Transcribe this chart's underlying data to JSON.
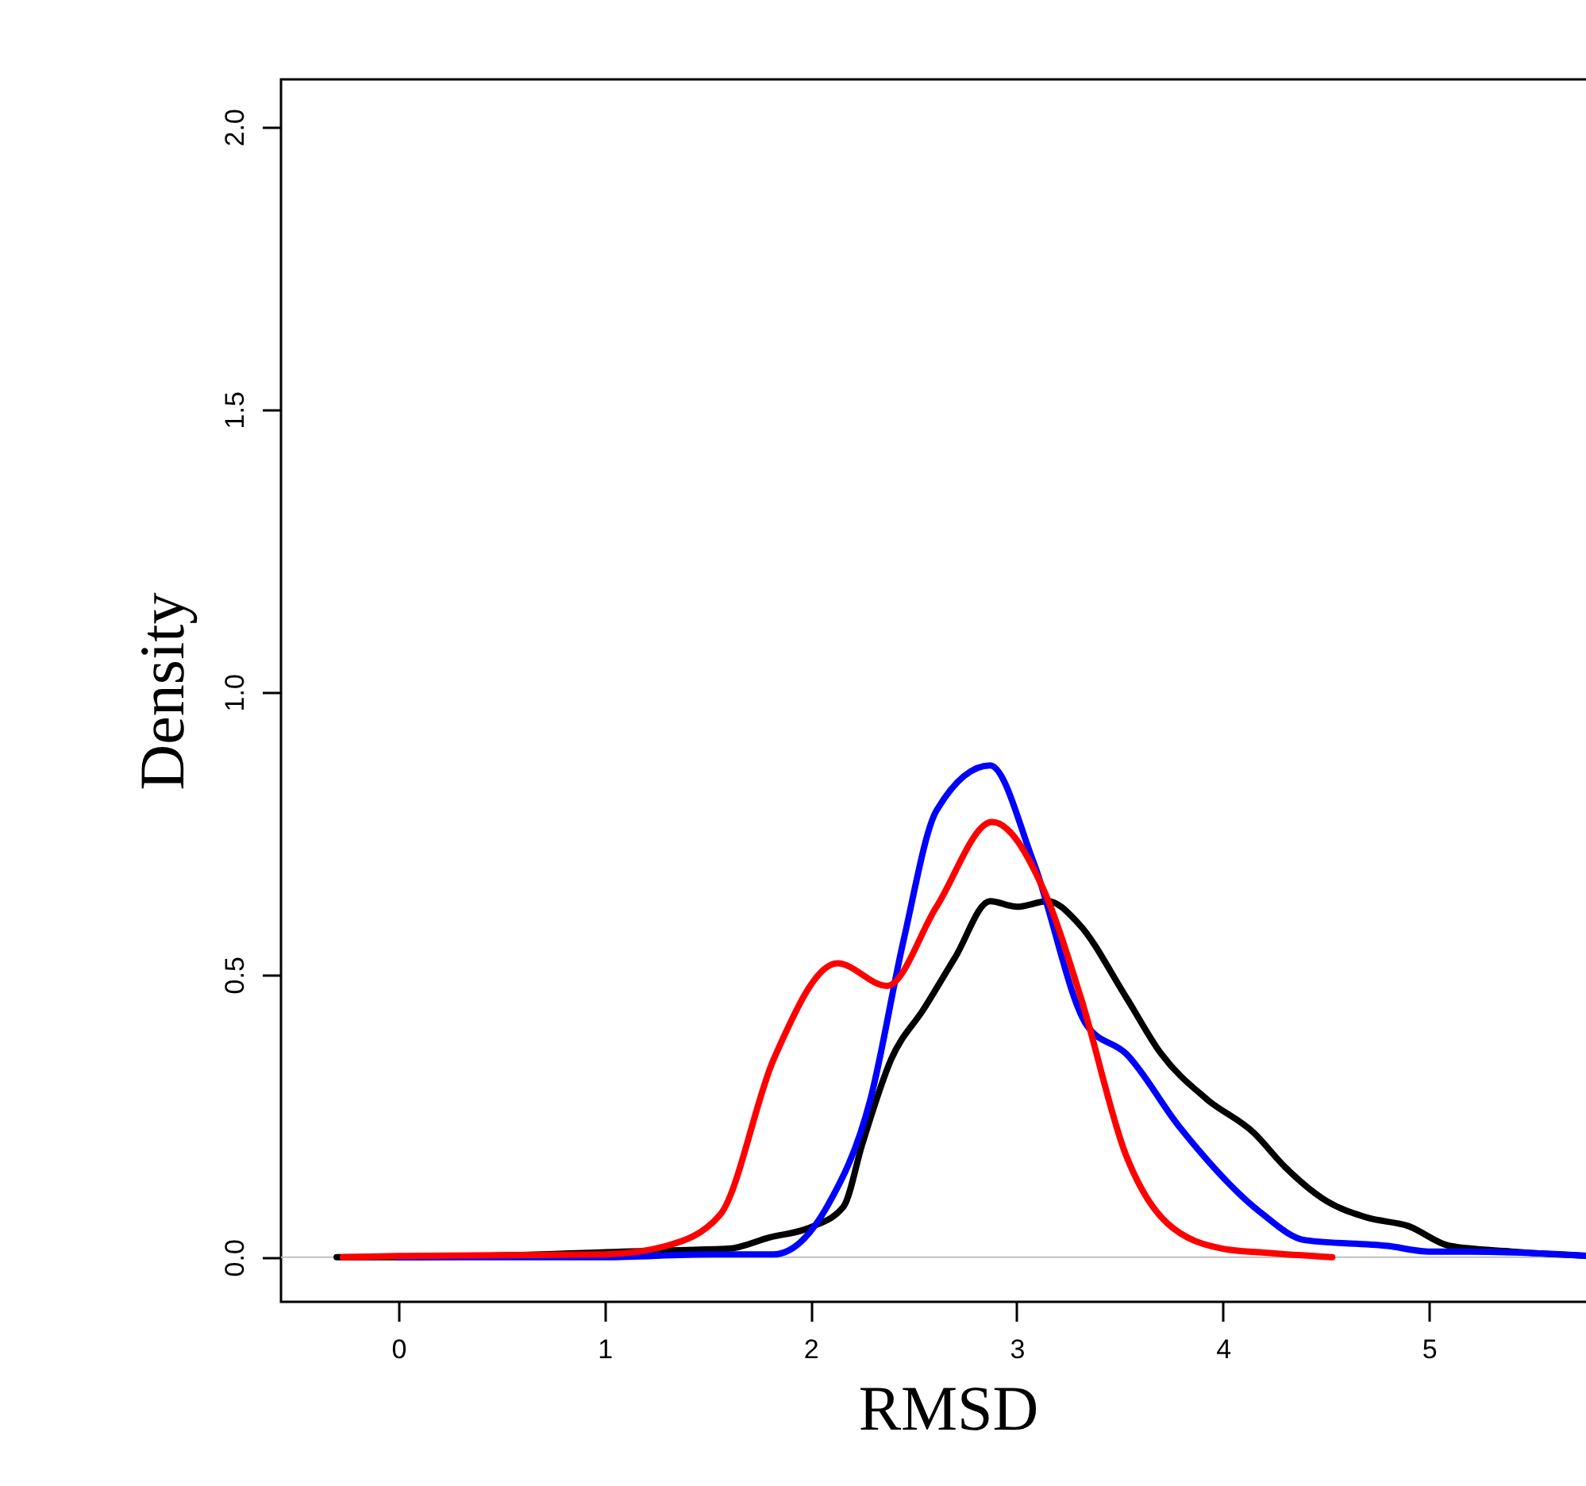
{
  "chart_data": {
    "type": "line",
    "xlabel": "RMSD",
    "ylabel": "Density",
    "xlim": [
      -0.57,
      5.9
    ],
    "ylim": [
      -0.079,
      2.084
    ],
    "xticks": [
      0,
      1,
      2,
      3,
      4,
      5
    ],
    "yticks": [
      {
        "value": 0,
        "label": "0.0"
      },
      {
        "value": 0.5,
        "label": "0.5"
      },
      {
        "value": 1,
        "label": "1.0"
      },
      {
        "value": 1.5,
        "label": "1.5"
      },
      {
        "value": 2,
        "label": "2.0"
      }
    ],
    "grid": false,
    "legend": false,
    "line_style": "solid",
    "marker": "none",
    "ref_lines": [
      {
        "axis": "y",
        "value": 0,
        "color": "#bebebe"
      }
    ],
    "series": [
      {
        "color": "#000000",
        "x": [
          -0.3,
          0,
          1.3,
          1.6,
          1.8,
          2.0,
          2.16,
          2.25,
          2.39,
          2.55,
          2.7,
          2.87,
          3.0,
          3.15,
          3.3,
          3.53,
          3.7,
          3.92,
          4.15,
          4.3,
          4.5,
          4.7,
          4.9,
          5.1,
          5.4,
          5.9
        ],
        "values": [
          0,
          0,
          0.012,
          0.015,
          0.035,
          0.053,
          0.09,
          0.2,
          0.35,
          0.44,
          0.53,
          0.63,
          0.62,
          0.63,
          0.59,
          0.46,
          0.36,
          0.28,
          0.22,
          0.16,
          0.1,
          0.07,
          0.055,
          0.02,
          0.01,
          0
        ]
      },
      {
        "color": "#0000ff",
        "x": [
          0,
          1,
          1.5,
          1.82,
          2.08,
          2.29,
          2.45,
          2.61,
          2.87,
          3.08,
          3.34,
          3.53,
          3.79,
          4.18,
          4.4,
          4.8,
          5.0,
          5.2,
          5.9
        ],
        "values": [
          0,
          0,
          0.005,
          0.005,
          0.09,
          0.28,
          0.56,
          0.79,
          0.87,
          0.7,
          0.41,
          0.36,
          0.23,
          0.08,
          0.03,
          0.02,
          0.01,
          0.01,
          0
        ]
      },
      {
        "color": "#ff0000",
        "x": [
          -0.27,
          0,
          1,
          1.3,
          1.56,
          1.82,
          2.13,
          2.37,
          2.61,
          2.88,
          3.13,
          3.31,
          3.53,
          3.73,
          4.0,
          4.2,
          4.53
        ],
        "values": [
          0,
          0.002,
          0.005,
          0.02,
          0.075,
          0.35,
          0.52,
          0.48,
          0.62,
          0.77,
          0.65,
          0.46,
          0.18,
          0.06,
          0.015,
          0.008,
          0
        ]
      }
    ]
  }
}
